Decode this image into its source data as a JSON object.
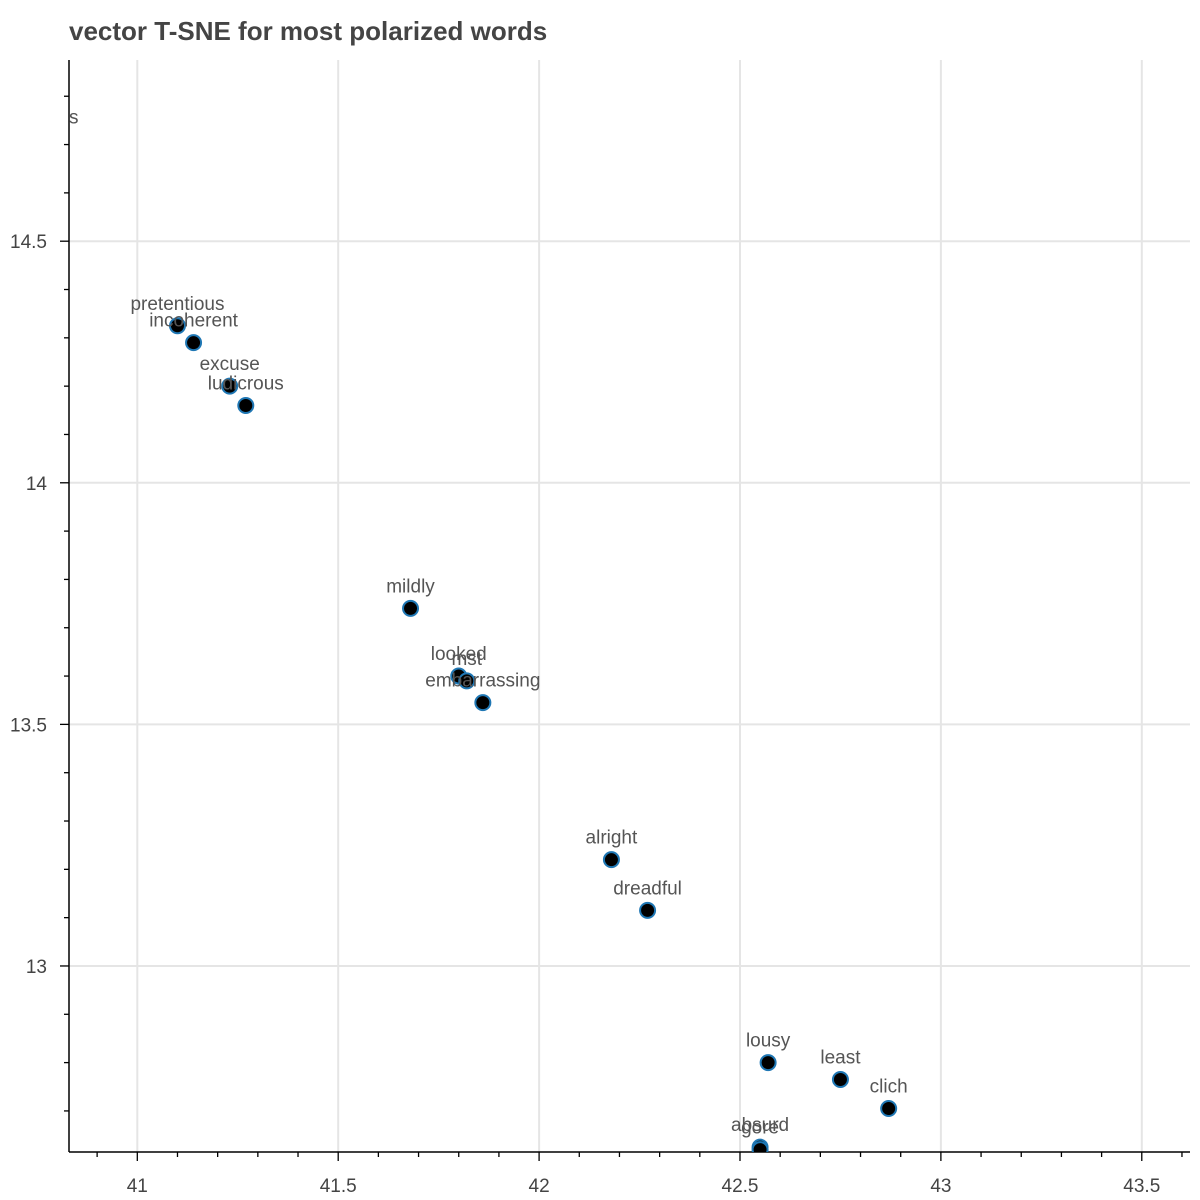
{
  "chart_data": {
    "type": "scatter",
    "title": "vector T-SNE for most polarized words",
    "xlabel": "",
    "ylabel": "",
    "xlim": [
      40.83,
      43.62
    ],
    "ylim": [
      12.615,
      14.875
    ],
    "grid": true,
    "x_ticks": [
      41,
      41.5,
      42,
      42.5,
      43,
      43.5
    ],
    "x_tick_labels": [
      "41",
      "41.5",
      "42",
      "42.5",
      "43",
      "43.5"
    ],
    "y_ticks": [
      14.5,
      14,
      13.5,
      13
    ],
    "y_tick_labels": [
      "14.5",
      "14",
      "13.5",
      "13"
    ],
    "marker_color": "#000000",
    "marker_edge_color": "#1f77b4",
    "points": [
      {
        "label": "pretentious",
        "x": 41.1,
        "y": 14.325
      },
      {
        "label": "incoherent",
        "x": 41.14,
        "y": 14.29
      },
      {
        "label": "excuse",
        "x": 41.23,
        "y": 14.2
      },
      {
        "label": "ludicrous",
        "x": 41.27,
        "y": 14.16
      },
      {
        "label": "mildly",
        "x": 41.68,
        "y": 13.74
      },
      {
        "label": "looked",
        "x": 41.8,
        "y": 13.6
      },
      {
        "label": "mst",
        "x": 41.82,
        "y": 13.59
      },
      {
        "label": "embarrassing",
        "x": 41.86,
        "y": 13.545
      },
      {
        "label": "alright",
        "x": 42.18,
        "y": 13.22
      },
      {
        "label": "dreadful",
        "x": 42.27,
        "y": 13.115
      },
      {
        "label": "lousy",
        "x": 42.57,
        "y": 12.8
      },
      {
        "label": "least",
        "x": 42.75,
        "y": 12.765
      },
      {
        "label": "clich",
        "x": 42.87,
        "y": 12.705
      },
      {
        "label": "absurd",
        "x": 42.55,
        "y": 12.625
      },
      {
        "label": "gore",
        "x": 42.55,
        "y": 12.62
      },
      {
        "label": "s",
        "x": 40.83,
        "y": 14.71
      }
    ],
    "hidden_markers": [
      "s"
    ]
  }
}
